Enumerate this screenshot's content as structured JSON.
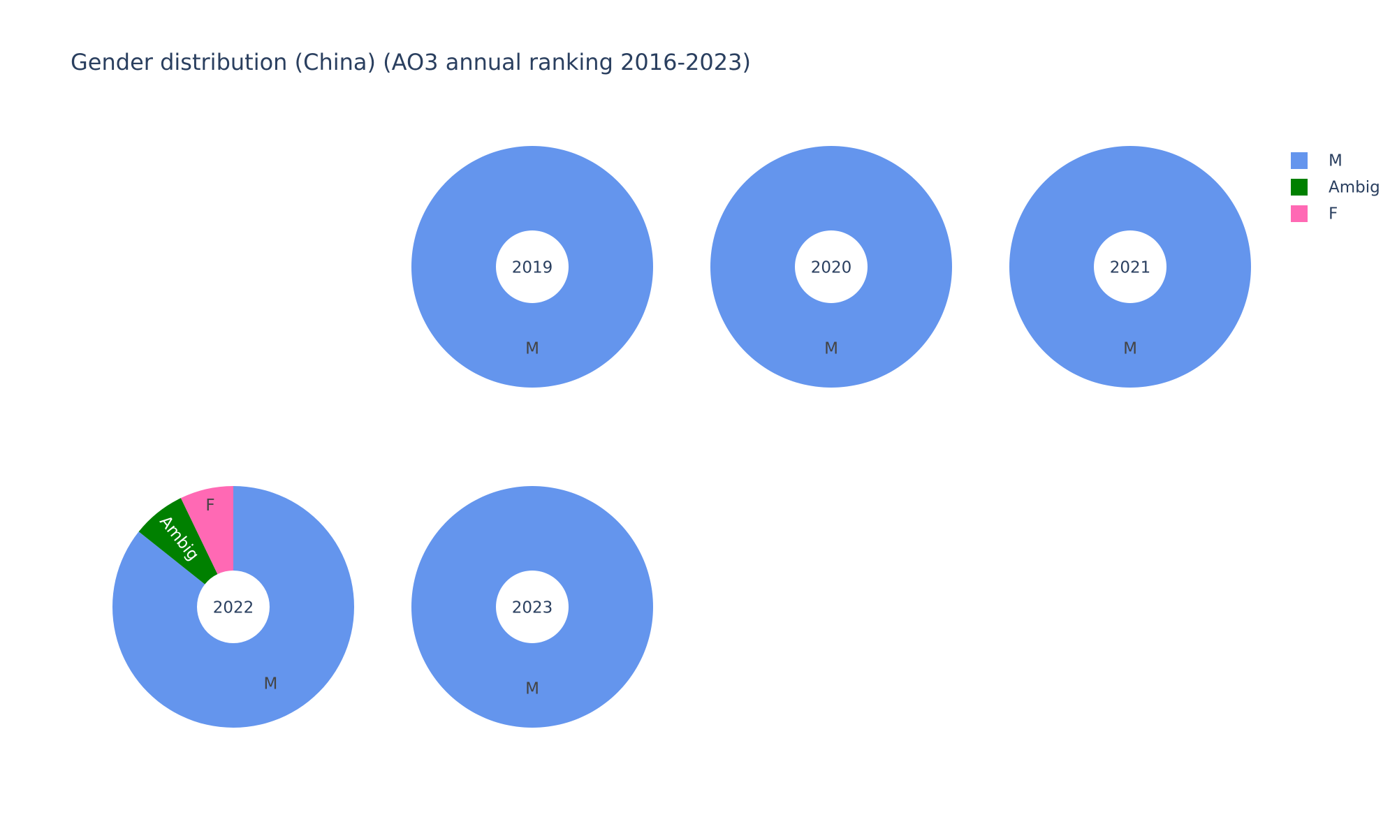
{
  "chart_data": {
    "type": "pie",
    "title": "Gender distribution (China) (AO3 annual ranking 2016-2023)",
    "legend": {
      "placement": "top-right",
      "entries": [
        {
          "name": "M",
          "color": "#6495ED"
        },
        {
          "name": "Ambig",
          "color": "#008000"
        },
        {
          "name": "F",
          "color": "#FF69B4"
        }
      ]
    },
    "charts": [
      {
        "year": "2019",
        "slices": [
          {
            "label": "M",
            "value": 1.0,
            "color": "#6495ED"
          }
        ]
      },
      {
        "year": "2020",
        "slices": [
          {
            "label": "M",
            "value": 1.0,
            "color": "#6495ED"
          }
        ]
      },
      {
        "year": "2021",
        "slices": [
          {
            "label": "M",
            "value": 1.0,
            "color": "#6495ED"
          }
        ]
      },
      {
        "year": "2022",
        "slices": [
          {
            "label": "M",
            "value": 0.857,
            "color": "#6495ED"
          },
          {
            "label": "Ambig",
            "value": 0.0715,
            "color": "#008000"
          },
          {
            "label": "F",
            "value": 0.0715,
            "color": "#FF69B4"
          }
        ]
      },
      {
        "year": "2023",
        "slices": [
          {
            "label": "M",
            "value": 1.0,
            "color": "#6495ED"
          }
        ]
      }
    ]
  }
}
